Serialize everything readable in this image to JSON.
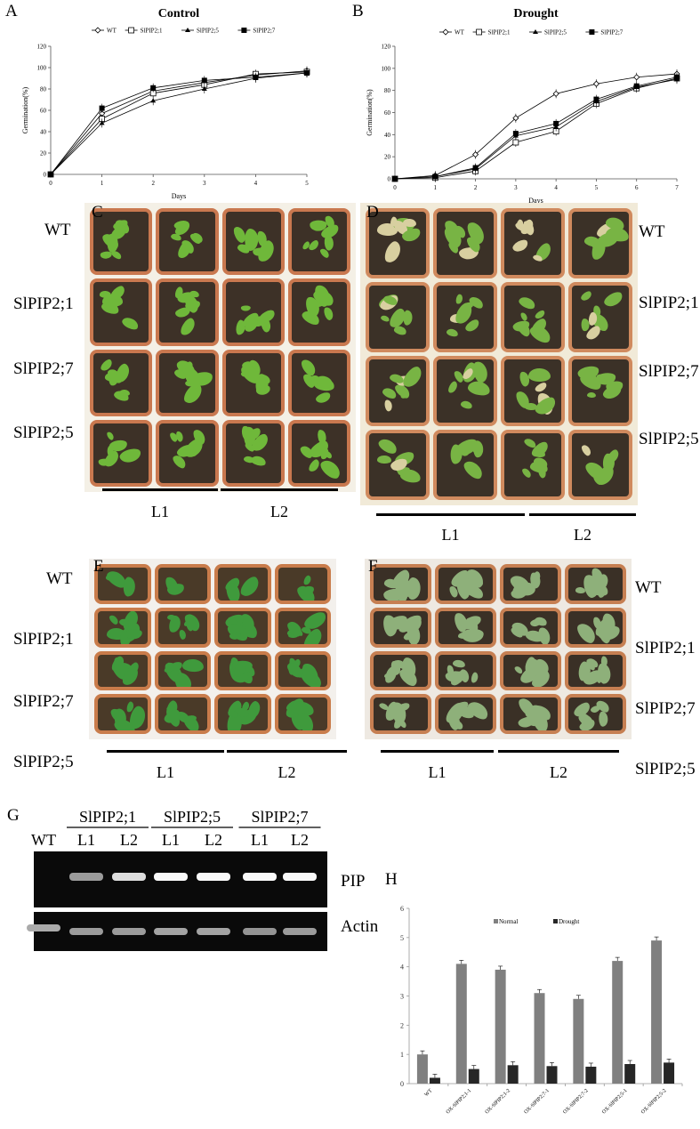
{
  "panels": {
    "A": "A",
    "B": "B",
    "C": "C",
    "D": "D",
    "E": "E",
    "F": "F",
    "G": "G",
    "H": "H"
  },
  "chart_data": [
    {
      "type": "line",
      "panel": "A",
      "title": "Control",
      "xlabel": "Days",
      "ylabel": "Germination(%)",
      "x": [
        0,
        1,
        2,
        3,
        4,
        5
      ],
      "xlim": [
        0,
        5
      ],
      "ylim": [
        0,
        120
      ],
      "yticks": [
        0,
        20,
        40,
        60,
        80,
        100,
        120
      ],
      "legend_position": "top",
      "series": [
        {
          "name": "WT",
          "marker": "diamond-open",
          "values": [
            0,
            57,
            78,
            86,
            93,
            97
          ]
        },
        {
          "name": "SlPIP2;1",
          "marker": "square-open",
          "values": [
            0,
            52,
            76,
            84,
            94,
            96
          ]
        },
        {
          "name": "SlPIP2;5",
          "marker": "triangle",
          "values": [
            0,
            48,
            69,
            80,
            90,
            95
          ]
        },
        {
          "name": "SlPIP2;7",
          "marker": "square",
          "values": [
            0,
            62,
            81,
            88,
            91,
            95
          ]
        }
      ]
    },
    {
      "type": "line",
      "panel": "B",
      "title": "Drought",
      "xlabel": "Days",
      "ylabel": "Germination(%)",
      "x": [
        0,
        1,
        2,
        3,
        4,
        5,
        6,
        7
      ],
      "xlim": [
        0,
        7
      ],
      "ylim": [
        0,
        120
      ],
      "yticks": [
        0,
        20,
        40,
        60,
        80,
        100,
        120
      ],
      "legend_position": "top",
      "series": [
        {
          "name": "WT",
          "marker": "diamond-open",
          "values": [
            0,
            3,
            22,
            55,
            77,
            86,
            92,
            95
          ]
        },
        {
          "name": "SlPIP2;1",
          "marker": "square-open",
          "values": [
            0,
            1,
            7,
            33,
            43,
            68,
            82,
            91
          ]
        },
        {
          "name": "SlPIP2;5",
          "marker": "triangle",
          "values": [
            0,
            2,
            9,
            39,
            47,
            70,
            83,
            90
          ]
        },
        {
          "name": "SlPIP2;7",
          "marker": "square",
          "values": [
            0,
            2,
            10,
            41,
            50,
            72,
            84,
            92
          ]
        }
      ]
    },
    {
      "type": "bar",
      "panel": "H",
      "categories": [
        "WT",
        "OX-SlPIP2;1-1",
        "OX-SlPIP2;1-2",
        "OX-SlPIP2;7-1",
        "OX-SlPIP2;7-2",
        "OX-SlPIP2;5-1",
        "OX-SlPIP2;5-2"
      ],
      "ylim": [
        0,
        6
      ],
      "yticks": [
        0,
        1,
        2,
        3,
        4,
        5,
        6
      ],
      "legend_position": "top",
      "series": [
        {
          "name": "Normal",
          "color": "#808080",
          "values": [
            1.0,
            4.1,
            3.9,
            3.1,
            2.9,
            4.2,
            4.9
          ]
        },
        {
          "name": "Drought",
          "color": "#262626",
          "values": [
            0.2,
            0.5,
            0.63,
            0.6,
            0.58,
            0.67,
            0.72
          ]
        }
      ]
    }
  ],
  "photos": {
    "C": {
      "rows": [
        "WT",
        "SlPIP2;1",
        "SlPIP2;7",
        "SlPIP2;5"
      ],
      "lines": [
        "L1",
        "L2"
      ],
      "leaf_color": "#6fb83a",
      "soil_color": "#3d3127"
    },
    "D": {
      "rows": [
        "WT",
        "SlPIP2;1",
        "SlPIP2;7",
        "SlPIP2;5"
      ],
      "lines": [
        "L1",
        "L2"
      ],
      "leaf_color": "#78b444",
      "wilted_color": "#d8cfa0",
      "soil_color": "#3b3127"
    },
    "E": {
      "rows": [
        "WT",
        "SlPIP2;1",
        "SlPIP2;7",
        "SlPIP2;5"
      ],
      "lines": [
        "L1",
        "L2"
      ],
      "leaf_color": "#3f9a3c",
      "soil_color": "#4a3a28"
    },
    "F": {
      "rows": [
        "WT",
        "SlPIP2;1",
        "SlPIP2;7",
        "SlPIP2;5"
      ],
      "lines": [
        "L1",
        "L2"
      ],
      "leaf_color": "#8eb07a",
      "soil_color": "#3a3026"
    }
  },
  "gel": {
    "groups": [
      "SlPIP2;1",
      "SlPIP2;5",
      "SlPIP2;7"
    ],
    "wt_label": "WT",
    "lanes": [
      "L1",
      "L2",
      "L1",
      "L2",
      "L1",
      "L2"
    ],
    "genes": [
      "PIP",
      "Actin"
    ],
    "pip_intensity": [
      0,
      0.5,
      0.85,
      1,
      1,
      1,
      1
    ],
    "actin_intensity": [
      0.8,
      0.7,
      0.7,
      0.75,
      0.75,
      0.65,
      0.7
    ]
  }
}
